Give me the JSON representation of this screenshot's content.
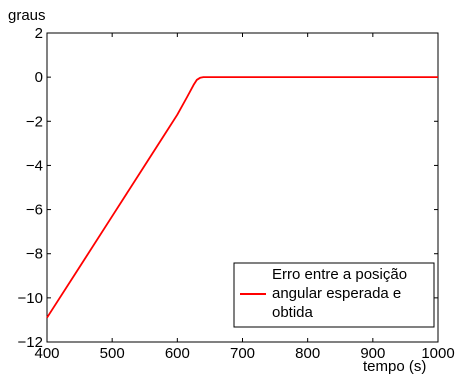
{
  "chart_data": {
    "type": "line",
    "title": "",
    "xlabel": "tempo (s)",
    "ylabel": "graus",
    "xlim": [
      400,
      1000
    ],
    "ylim": [
      -12,
      2
    ],
    "xticks": [
      400,
      500,
      600,
      700,
      800,
      900,
      1000
    ],
    "yticks": [
      2,
      0,
      -2,
      -4,
      -6,
      -8,
      -10,
      -12
    ],
    "xtick_labels": [
      "400",
      "500",
      "600",
      "700",
      "800",
      "900",
      "1000"
    ],
    "ytick_labels": [
      "2",
      "0",
      "−2",
      "−4",
      "−6",
      "−8",
      "−10",
      "−12"
    ],
    "grid": false,
    "legend_position": "bottom-right",
    "series": [
      {
        "name": "Erro entre a posição angular esperada e obtida",
        "color": "#ff0000",
        "x": [
          400,
          450,
          500,
          550,
          600,
          615,
          625,
          630,
          635,
          640,
          650,
          700,
          800,
          900,
          1000
        ],
        "y": [
          -10.9,
          -8.6,
          -6.3,
          -4.0,
          -1.7,
          -0.9,
          -0.35,
          -0.12,
          -0.03,
          0.0,
          0.0,
          0.0,
          0.0,
          0.0,
          0.0
        ]
      }
    ],
    "legend_lines": [
      "Erro entre a posição",
      "angular esperada e",
      "obtida"
    ]
  }
}
